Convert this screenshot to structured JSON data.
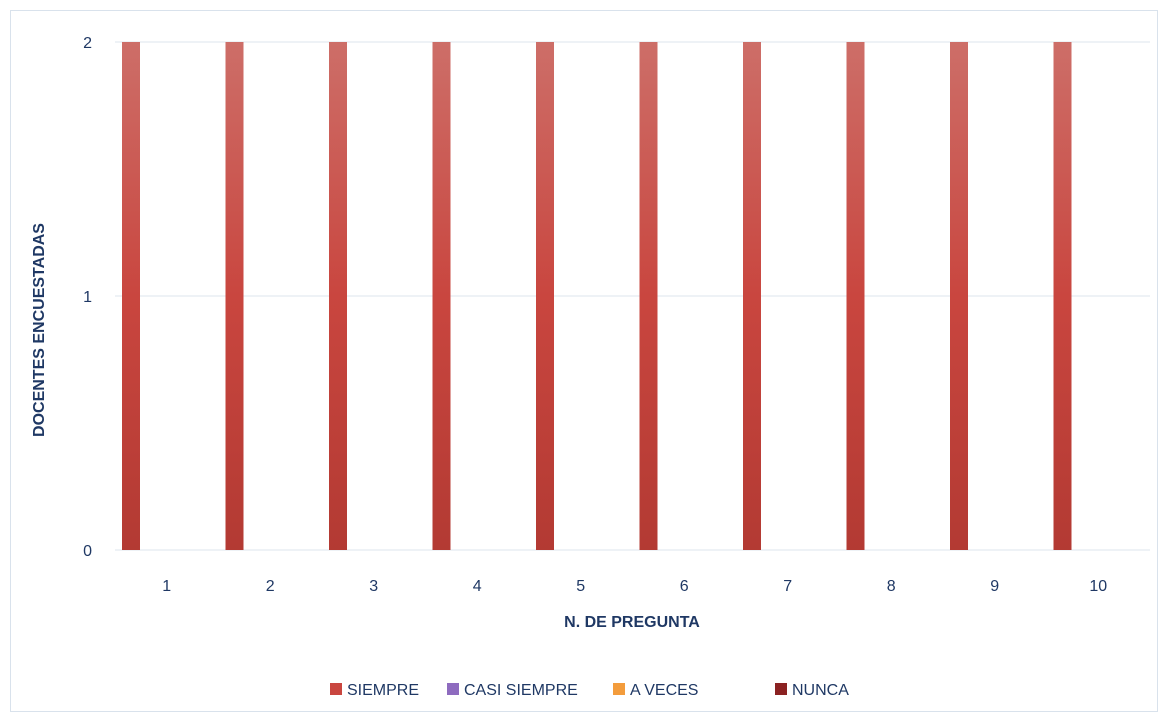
{
  "chart_data": {
    "type": "bar",
    "categories": [
      "1",
      "2",
      "3",
      "4",
      "5",
      "6",
      "7",
      "8",
      "9",
      "10"
    ],
    "series": [
      {
        "name": "SIEMPRE",
        "values": [
          2,
          2,
          2,
          2,
          2,
          2,
          2,
          2,
          2,
          2
        ],
        "color": "#c0392b"
      },
      {
        "name": "CASI SIEMPRE",
        "values": [
          0,
          0,
          0,
          0,
          0,
          0,
          0,
          0,
          0,
          0
        ],
        "color": "#8e6bbf"
      },
      {
        "name": "A VECES",
        "values": [
          0,
          0,
          0,
          0,
          0,
          0,
          0,
          0,
          0,
          0
        ],
        "color": "#f39c3c"
      },
      {
        "name": "NUNCA",
        "values": [
          0,
          0,
          0,
          0,
          0,
          0,
          0,
          0,
          0,
          0
        ],
        "color": "#8b2222"
      }
    ],
    "title": "",
    "xlabel": "N. DE PREGUNTA",
    "ylabel": "DOCENTES ENCUESTADAS",
    "ylim": [
      0,
      2
    ],
    "yticks": [
      0,
      1,
      2
    ],
    "grid": true,
    "legend_position": "bottom"
  }
}
